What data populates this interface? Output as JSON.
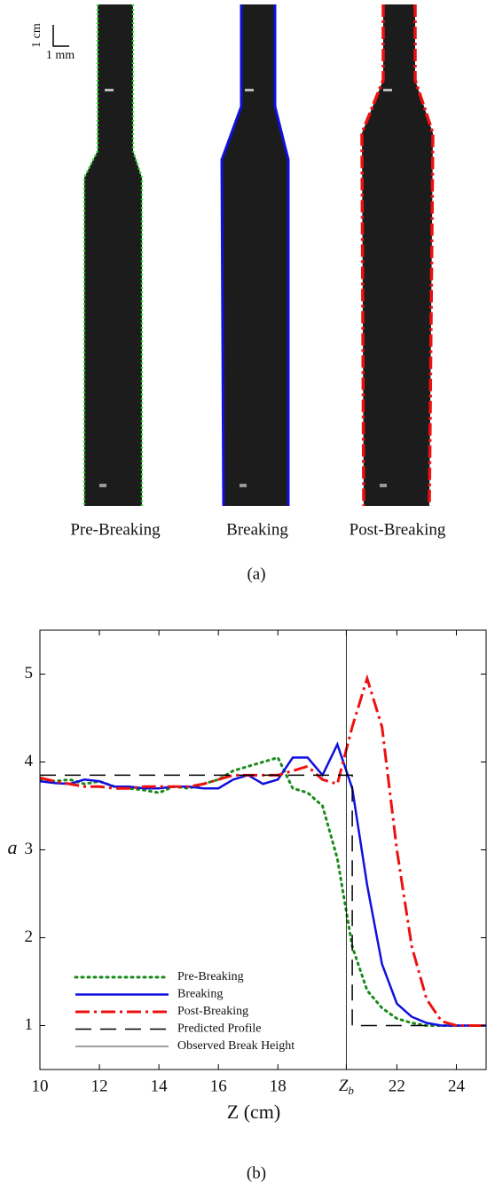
{
  "figure_a": {
    "scale_bar": {
      "vertical": "1 cm",
      "horizontal": "1 mm"
    },
    "panels": [
      "Pre-Breaking",
      "Breaking",
      "Post-Breaking"
    ],
    "caption": "(a)"
  },
  "chart_data": {
    "type": "line",
    "caption": "(b)",
    "x_label": "Z (cm)",
    "y_label": "a",
    "xlim": [
      10,
      25
    ],
    "ylim": [
      0.5,
      5.5
    ],
    "xticks": [
      10,
      12,
      14,
      16,
      18,
      {
        "value": 20.3,
        "label": "Zb"
      },
      22,
      24
    ],
    "yticks": [
      1,
      2,
      3,
      4,
      5
    ],
    "legend": "lower left",
    "series": [
      {
        "name": "Pre-Breaking",
        "color": "#1a8a1a",
        "linestyle": "dotted",
        "linewidth": 3,
        "x": [
          10,
          10.5,
          11,
          11.5,
          12,
          12.5,
          13,
          13.5,
          14,
          14.5,
          15,
          15.5,
          16,
          16.5,
          17,
          17.5,
          18,
          18.5,
          19,
          19.5,
          20,
          20.5,
          21,
          21.5,
          22,
          22.5,
          23,
          23.5,
          24,
          24.5,
          25
        ],
        "values": [
          3.8,
          3.78,
          3.8,
          3.75,
          3.78,
          3.72,
          3.7,
          3.68,
          3.65,
          3.72,
          3.7,
          3.75,
          3.8,
          3.9,
          3.95,
          4.0,
          4.05,
          3.7,
          3.65,
          3.5,
          2.9,
          1.9,
          1.4,
          1.2,
          1.08,
          1.03,
          1.0,
          1.0,
          1.0,
          1.0,
          1.0
        ]
      },
      {
        "name": "Breaking",
        "color": "#1010e0",
        "linestyle": "solid",
        "linewidth": 2.5,
        "x": [
          10,
          10.5,
          11,
          11.5,
          12,
          12.5,
          13,
          13.5,
          14,
          14.5,
          15,
          15.5,
          16,
          16.5,
          17,
          17.5,
          18,
          18.5,
          19,
          19.5,
          20,
          20.5,
          21,
          21.5,
          22,
          22.5,
          23,
          23.5,
          24,
          24.5,
          25
        ],
        "values": [
          3.78,
          3.76,
          3.75,
          3.8,
          3.78,
          3.72,
          3.72,
          3.7,
          3.7,
          3.72,
          3.72,
          3.7,
          3.7,
          3.8,
          3.85,
          3.75,
          3.8,
          4.05,
          4.05,
          3.85,
          4.2,
          3.7,
          2.6,
          1.7,
          1.25,
          1.1,
          1.03,
          1.0,
          1.0,
          1.0,
          1.0
        ]
      },
      {
        "name": "Post-Breaking",
        "color": "#ee1010",
        "linestyle": "dashdot",
        "linewidth": 3,
        "x": [
          10,
          10.5,
          11,
          11.5,
          12,
          12.5,
          13,
          13.5,
          14,
          14.5,
          15,
          15.5,
          16,
          16.5,
          17,
          17.5,
          18,
          18.5,
          19,
          19.5,
          20,
          20.5,
          21,
          21.5,
          22,
          22.5,
          23,
          23.5,
          24,
          24.5,
          25
        ],
        "values": [
          3.82,
          3.78,
          3.75,
          3.72,
          3.72,
          3.7,
          3.7,
          3.72,
          3.72,
          3.72,
          3.72,
          3.75,
          3.8,
          3.85,
          3.85,
          3.85,
          3.85,
          3.9,
          3.95,
          3.8,
          3.75,
          4.4,
          4.95,
          4.4,
          3.0,
          1.9,
          1.3,
          1.05,
          1.0,
          1.0,
          1.0
        ]
      },
      {
        "name": "Predicted Profile",
        "color": "#000000",
        "linestyle": "dashed",
        "linewidth": 1.5,
        "x": [
          10,
          20.5,
          20.5,
          23
        ],
        "values": [
          3.85,
          3.85,
          1,
          1
        ]
      },
      {
        "name": "Observed Break Height",
        "color": "#000000",
        "linestyle": "solid",
        "linewidth": 0.8,
        "x": [
          20.3,
          20.3
        ],
        "values": [
          0.5,
          5.5
        ]
      }
    ]
  }
}
